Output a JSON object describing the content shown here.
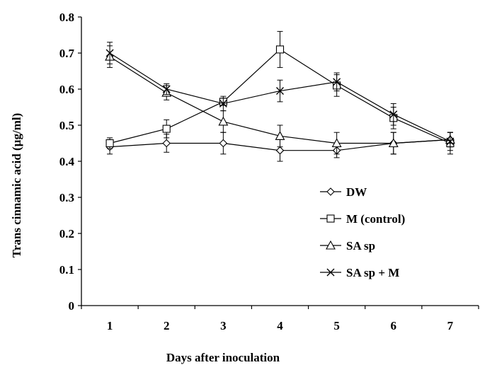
{
  "chart_data": {
    "type": "line",
    "title": "",
    "xlabel": "Days after inoculation",
    "ylabel": "Trans cinnamic acid (µg/ml)",
    "x": [
      1,
      2,
      3,
      4,
      5,
      6,
      7
    ],
    "x_tick_labels": [
      "1",
      "2",
      "3",
      "4",
      "5",
      "6",
      "7"
    ],
    "xlim": [
      0.5,
      7.5
    ],
    "ylim": [
      0,
      0.8
    ],
    "y_tick_labels": [
      "0",
      "0.1",
      "0.2",
      "0.3",
      "0.4",
      "0.5",
      "0.6",
      "0.7",
      "0.8"
    ],
    "grid": false,
    "legend_position": "lower-right",
    "series": [
      {
        "name": "DW",
        "marker": "diamond",
        "values": [
          0.44,
          0.45,
          0.45,
          0.43,
          0.43,
          0.45,
          0.46
        ],
        "errors": [
          0.02,
          0.025,
          0.03,
          0.03,
          0.02,
          0.03,
          0.02
        ]
      },
      {
        "name": "M (control)",
        "marker": "square",
        "values": [
          0.45,
          0.49,
          0.565,
          0.71,
          0.61,
          0.52,
          0.45
        ],
        "errors": [
          0.015,
          0.025,
          0.01,
          0.05,
          0.03,
          0.03,
          0.03
        ]
      },
      {
        "name": "SA sp",
        "marker": "triangle",
        "values": [
          0.69,
          0.59,
          0.51,
          0.47,
          0.45,
          0.45,
          0.46
        ],
        "errors": [
          0.03,
          0.02,
          0.03,
          0.03,
          0.03,
          0.03,
          0.02
        ]
      },
      {
        "name": "SA sp + M",
        "marker": "x",
        "values": [
          0.7,
          0.6,
          0.56,
          0.595,
          0.62,
          0.53,
          0.455
        ],
        "errors": [
          0.03,
          0.015,
          0.02,
          0.03,
          0.025,
          0.03,
          0.025
        ]
      }
    ]
  }
}
